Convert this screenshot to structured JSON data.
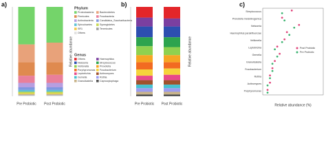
{
  "chart_data": [
    {
      "type": "stacked_bar",
      "title": "a)",
      "ylabel": "Relative abundance",
      "legend_title": "Phylum",
      "categories": [
        "Pre Probiotic",
        "Post Probiotic"
      ],
      "ylim": [
        0,
        1
      ],
      "series": [
        {
          "name": "Proteobacteria",
          "color": "#74d46a",
          "values": [
            0.42,
            0.4
          ]
        },
        {
          "name": "Bacteroidetes",
          "color": "#e8a27a",
          "values": [
            0.2,
            0.22
          ]
        },
        {
          "name": "Firmicutes",
          "color": "#df8a4f",
          "values": [
            0.15,
            0.14
          ]
        },
        {
          "name": "Fusobacteria",
          "color": "#e97f9a",
          "values": [
            0.08,
            0.09
          ]
        },
        {
          "name": "Actinobacteria",
          "color": "#b79ee0",
          "values": [
            0.05,
            0.05
          ]
        },
        {
          "name": "Candidatus_Saccharibacteria",
          "color": "#7f97e0",
          "values": [
            0.03,
            0.03
          ]
        },
        {
          "name": "Spirochaetes",
          "color": "#5cc0d6",
          "values": [
            0.02,
            0.02
          ]
        },
        {
          "name": "Synergistetes",
          "color": "#c6d84f",
          "values": [
            0.02,
            0.02
          ]
        },
        {
          "name": "SR1",
          "color": "#f2c94c",
          "values": [
            0.01,
            0.01
          ]
        },
        {
          "name": "Tenericutes",
          "color": "#a0a0a0",
          "values": [
            0.01,
            0.01
          ]
        },
        {
          "name": "Others",
          "color": "#e0e0e0",
          "values": [
            0.01,
            0.01
          ]
        }
      ]
    },
    {
      "type": "stacked_bar",
      "title": "b)",
      "ylabel": "Relative abundance",
      "legend_title": "Genus",
      "categories": [
        "Pre Probiotic",
        "Post Probiotic"
      ],
      "ylim": [
        0,
        1
      ],
      "series": [
        {
          "name": "Others",
          "color": "#e3262a",
          "values": [
            0.12,
            0.13
          ]
        },
        {
          "name": "Haemophilus",
          "color": "#7b3fa0",
          "values": [
            0.1,
            0.09
          ]
        },
        {
          "name": "Neisseria",
          "color": "#2d4fb0",
          "values": [
            0.12,
            0.12
          ]
        },
        {
          "name": "Streptococcus",
          "color": "#2da44e",
          "values": [
            0.1,
            0.11
          ]
        },
        {
          "name": "Veillonella",
          "color": "#8fd14f",
          "values": [
            0.1,
            0.09
          ]
        },
        {
          "name": "Prevotella",
          "color": "#f6a623",
          "values": [
            0.08,
            0.08
          ]
        },
        {
          "name": "Porphyromonas",
          "color": "#f26b21",
          "values": [
            0.08,
            0.07
          ]
        },
        {
          "name": "Fusobacterium",
          "color": "#f5d33b",
          "values": [
            0.07,
            0.07
          ]
        },
        {
          "name": "Leptotrichia",
          "color": "#e84a8a",
          "values": [
            0.05,
            0.06
          ]
        },
        {
          "name": "Actinomyces",
          "color": "#a0522d",
          "values": [
            0.05,
            0.05
          ]
        },
        {
          "name": "Gemella",
          "color": "#46c1d0",
          "values": [
            0.04,
            0.04
          ]
        },
        {
          "name": "Rothia",
          "color": "#9c9cf0",
          "values": [
            0.04,
            0.04
          ]
        },
        {
          "name": "Granulicatella",
          "color": "#c9b48a",
          "values": [
            0.03,
            0.03
          ]
        },
        {
          "name": "Capnocytophaga",
          "color": "#555555",
          "values": [
            0.02,
            0.02
          ]
        }
      ]
    },
    {
      "type": "dot",
      "title": "c)",
      "xlabel": "Relative abundance (%)",
      "xlim": [
        0,
        25
      ],
      "categories": [
        "Streptococcus",
        "Prevotella melaninogenica",
        "Neisseria",
        "Haemophilus parainfluenzae",
        "Veillonella",
        "Leptotrichia",
        "Gemella",
        "Granulicatella",
        "Fusobacterium",
        "Rothia",
        "Actinomyces",
        "Porphyromonas"
      ],
      "series": [
        {
          "name": "Post Probiotic",
          "color": "#e0457b",
          "values": [
            12,
            8,
            15,
            10,
            9,
            6,
            7,
            5,
            4,
            3,
            3,
            2
          ]
        },
        {
          "name": "Pre Probiotic",
          "color": "#3cb371",
          "values": [
            8,
            9,
            13,
            11,
            8,
            5,
            6,
            4,
            4,
            3,
            2,
            2
          ]
        }
      ]
    }
  ]
}
